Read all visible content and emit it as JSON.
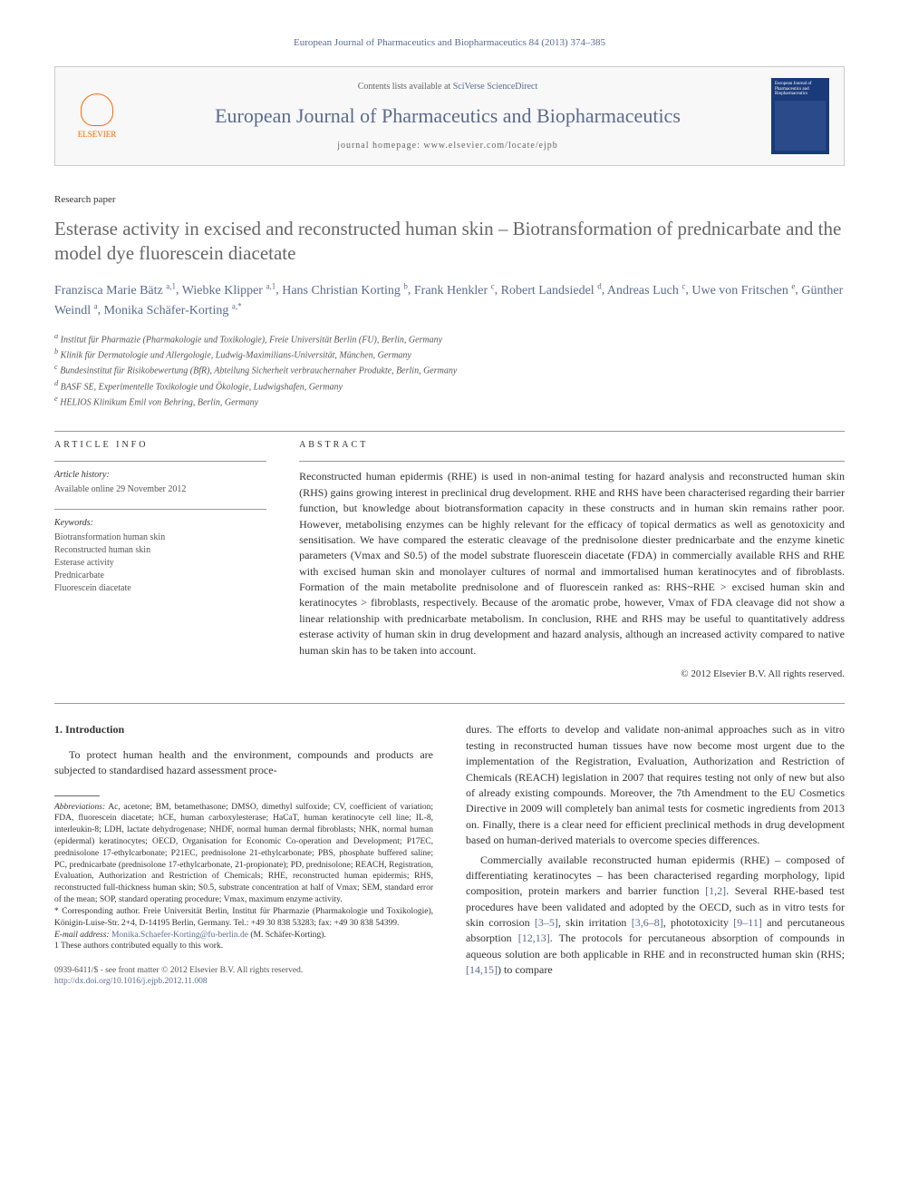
{
  "citation": "European Journal of Pharmaceutics and Biopharmaceutics 84 (2013) 374–385",
  "banner": {
    "contents_prefix": "Contents lists available at ",
    "contents_link": "SciVerse ScienceDirect",
    "journal_name": "European Journal of Pharmaceutics and Biopharmaceutics",
    "homepage_prefix": "journal homepage: ",
    "homepage_url": "www.elsevier.com/locate/ejpb",
    "publisher": "ELSEVIER",
    "cover_text": "European Journal of Pharmaceutics and Biopharmaceutics"
  },
  "paper_type": "Research paper",
  "title": "Esterase activity in excised and reconstructed human skin – Biotransformation of prednicarbate and the model dye fluorescein diacetate",
  "authors_html": "Franzisca Marie Bätz",
  "authors": [
    {
      "name": "Franzisca Marie Bätz",
      "marks": "a,1"
    },
    {
      "name": "Wiebke Klipper",
      "marks": "a,1"
    },
    {
      "name": "Hans Christian Korting",
      "marks": "b"
    },
    {
      "name": "Frank Henkler",
      "marks": "c"
    },
    {
      "name": "Robert Landsiedel",
      "marks": "d"
    },
    {
      "name": "Andreas Luch",
      "marks": "c"
    },
    {
      "name": "Uwe von Fritschen",
      "marks": "e"
    },
    {
      "name": "Günther Weindl",
      "marks": "a"
    },
    {
      "name": "Monika Schäfer-Korting",
      "marks": "a,*"
    }
  ],
  "affiliations": [
    "a Institut für Pharmazie (Pharmakologie und Toxikologie), Freie Universität Berlin (FU), Berlin, Germany",
    "b Klinik für Dermatologie und Allergologie, Ludwig-Maximilians-Universität, München, Germany",
    "c Bundesinstitut für Risikobewertung (BfR), Abteilung Sicherheit verbrauchernaher Produkte, Berlin, Germany",
    "d BASF SE, Experimentelle Toxikologie und Ökologie, Ludwigshafen, Germany",
    "e HELIOS Klinikum Emil von Behring, Berlin, Germany"
  ],
  "article_info": {
    "label": "ARTICLE INFO",
    "history_head": "Article history:",
    "history_line": "Available online 29 November 2012",
    "keywords_head": "Keywords:",
    "keywords": [
      "Biotransformation human skin",
      "Reconstructed human skin",
      "Esterase activity",
      "Prednicarbate",
      "Fluorescein diacetate"
    ]
  },
  "abstract": {
    "label": "ABSTRACT",
    "text": "Reconstructed human epidermis (RHE) is used in non-animal testing for hazard analysis and reconstructed human skin (RHS) gains growing interest in preclinical drug development. RHE and RHS have been characterised regarding their barrier function, but knowledge about biotransformation capacity in these constructs and in human skin remains rather poor. However, metabolising enzymes can be highly relevant for the efficacy of topical dermatics as well as genotoxicity and sensitisation. We have compared the esteratic cleavage of the prednisolone diester prednicarbate and the enzyme kinetic parameters (Vmax and S0.5) of the model substrate fluorescein diacetate (FDA) in commercially available RHS and RHE with excised human skin and monolayer cultures of normal and immortalised human keratinocytes and of fibroblasts. Formation of the main metabolite prednisolone and of fluorescein ranked as: RHS~RHE > excised human skin and keratinocytes > fibroblasts, respectively. Because of the aromatic probe, however, Vmax of FDA cleavage did not show a linear relationship with prednicarbate metabolism. In conclusion, RHE and RHS may be useful to quantitatively address esterase activity of human skin in drug development and hazard analysis, although an increased activity compared to native human skin has to be taken into account.",
    "copyright": "© 2012 Elsevier B.V. All rights reserved."
  },
  "intro": {
    "heading": "1. Introduction",
    "para1": "To protect human health and the environment, compounds and products are subjected to standardised hazard assessment proce-",
    "para2": "dures. The efforts to develop and validate non-animal approaches such as in vitro testing in reconstructed human tissues have now become most urgent due to the implementation of the Registration, Evaluation, Authorization and Restriction of Chemicals (REACH) legislation in 2007 that requires testing not only of new but also of already existing compounds. Moreover, the 7th Amendment to the EU Cosmetics Directive in 2009 will completely ban animal tests for cosmetic ingredients from 2013 on. Finally, there is a clear need for efficient preclinical methods in drug development based on human-derived materials to overcome species differences.",
    "para3_a": "Commercially available reconstructed human epidermis (RHE) – composed of differentiating keratinocytes – has been characterised regarding morphology, lipid composition, protein markers and barrier function ",
    "para3_ref1": "[1,2]",
    "para3_b": ". Several RHE-based test procedures have been validated and adopted by the OECD, such as in vitro tests for skin corrosion ",
    "para3_ref2": "[3–5]",
    "para3_c": ", skin irritation ",
    "para3_ref3": "[3,6–8]",
    "para3_d": ", phototoxicity ",
    "para3_ref4": "[9–11]",
    "para3_e": " and percutaneous absorption ",
    "para3_ref5": "[12,13]",
    "para3_f": ". The protocols for percutaneous absorption of compounds in aqueous solution are both applicable in RHE and in reconstructed human skin (RHS; ",
    "para3_ref6": "[14,15]",
    "para3_g": ") to compare"
  },
  "footnotes": {
    "abbrev_label": "Abbreviations:",
    "abbrev_text": " Ac, acetone; BM, betamethasone; DMSO, dimethyl sulfoxide; CV, coefficient of variation; FDA, fluorescein diacetate; hCE, human carboxylesterase; HaCaT, human keratinocyte cell line; IL-8, interleukin-8; LDH, lactate dehydrogenase; NHDF, normal human dermal fibroblasts; NHK, normal human (epidermal) keratinocytes; OECD, Organisation for Economic Co-operation and Development; P17EC, prednisolone 17-ethylcarbonate; P21EC, prednisolone 21-ethylcarbonate; PBS, phosphate buffered saline; PC, prednicarbate (prednisolone 17-ethylcarbonate, 21-propionate); PD, prednisolone; REACH, Registration, Evaluation, Authorization and Restriction of Chemicals; RHE, reconstructed human epidermis; RHS, reconstructed full-thickness human skin; S0.5, substrate concentration at half of Vmax; SEM, standard error of the mean; SOP, standard operating procedure; Vmax, maximum enzyme activity.",
    "corr_label": "* Corresponding author.",
    "corr_text": " Freie Universität Berlin, Institut für Pharmazie (Pharmakologie und Toxikologie), Königin-Luise-Str. 2+4, D-14195 Berlin, Germany. Tel.: +49 30 838 53283; fax: +49 30 838 54399.",
    "email_label": "E-mail address: ",
    "email": "Monika.Schaefer-Korting@fu-berlin.de",
    "email_suffix": " (M. Schäfer-Korting).",
    "equal": "1 These authors contributed equally to this work."
  },
  "doi": {
    "line1": "0939-6411/$ - see front matter © 2012 Elsevier B.V. All rights reserved.",
    "line2_url": "http://dx.doi.org/10.1016/j.ejpb.2012.11.008"
  }
}
